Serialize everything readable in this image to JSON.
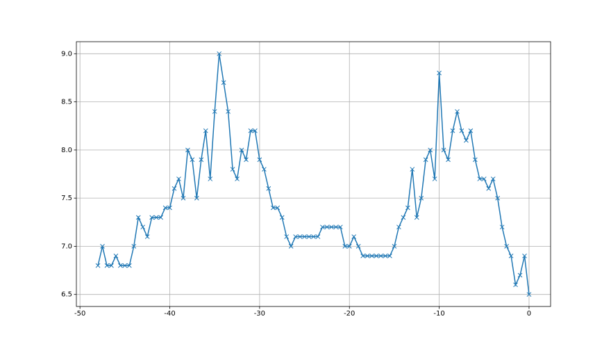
{
  "chart_data": {
    "type": "line",
    "marker": "x",
    "grid": true,
    "x": [
      -48,
      -47.5,
      -47,
      -46.5,
      -46,
      -45.5,
      -45,
      -44.5,
      -44,
      -43.5,
      -43,
      -42.5,
      -42,
      -41.5,
      -41,
      -40.5,
      -40,
      -39.5,
      -39,
      -38.5,
      -38,
      -37.5,
      -37,
      -36.5,
      -36,
      -35.5,
      -35,
      -34.5,
      -34,
      -33.5,
      -33,
      -32.5,
      -32,
      -31.5,
      -31,
      -30.5,
      -30,
      -29.5,
      -29,
      -28.5,
      -28,
      -27.5,
      -27,
      -26.5,
      -26,
      -25.5,
      -25,
      -24.5,
      -24,
      -23.5,
      -23,
      -22.5,
      -22,
      -21.5,
      -21,
      -20.5,
      -20,
      -19.5,
      -19,
      -18.5,
      -18,
      -17.5,
      -17,
      -16.5,
      -16,
      -15.5,
      -15,
      -14.5,
      -14,
      -13.5,
      -13,
      -12.5,
      -12,
      -11.5,
      -11,
      -10.5,
      -10,
      -9.5,
      -9,
      -8.5,
      -8,
      -7.5,
      -7,
      -6.5,
      -6,
      -5.5,
      -5,
      -4.5,
      -4,
      -3.5,
      -3,
      -2.5,
      -2,
      -1.5,
      -1,
      -0.5,
      0
    ],
    "series": [
      {
        "color": "#1f77b4",
        "values": [
          6.8,
          7.0,
          6.8,
          6.8,
          6.9,
          6.8,
          6.8,
          6.8,
          7.0,
          7.3,
          7.2,
          7.1,
          7.3,
          7.3,
          7.3,
          7.4,
          7.4,
          7.6,
          7.7,
          7.5,
          8.0,
          7.9,
          7.5,
          7.9,
          8.2,
          7.7,
          8.4,
          9.0,
          8.7,
          8.4,
          7.8,
          7.7,
          8.0,
          7.9,
          8.2,
          8.2,
          7.9,
          7.8,
          7.6,
          7.4,
          7.4,
          7.3,
          7.1,
          7.0,
          7.1,
          7.1,
          7.1,
          7.1,
          7.1,
          7.1,
          7.2,
          7.2,
          7.2,
          7.2,
          7.2,
          7.0,
          7.0,
          7.1,
          7.0,
          6.9,
          6.9,
          6.9,
          6.9,
          6.9,
          6.9,
          6.9,
          7.0,
          7.2,
          7.3,
          7.4,
          7.8,
          7.3,
          7.5,
          7.9,
          8.0,
          7.7,
          8.8,
          8.0,
          7.9,
          8.2,
          8.4,
          8.2,
          8.1,
          8.2,
          7.9,
          7.7,
          7.7,
          7.6,
          7.7,
          7.5,
          7.2,
          7.0,
          6.9,
          6.6,
          6.7,
          6.9,
          6.5
        ]
      }
    ],
    "xlim": [
      -50.4,
      2.4
    ],
    "xticks": [
      -50,
      -40,
      -30,
      -20,
      -10,
      0
    ],
    "ylim": [
      6.375,
      9.125
    ],
    "yticks": [
      6.5,
      {
        "value": 7,
        "label": "7.0"
      },
      7.5,
      {
        "value": 8,
        "label": "8.0"
      },
      8.5,
      {
        "value": 9,
        "label": "9.0"
      }
    ]
  }
}
